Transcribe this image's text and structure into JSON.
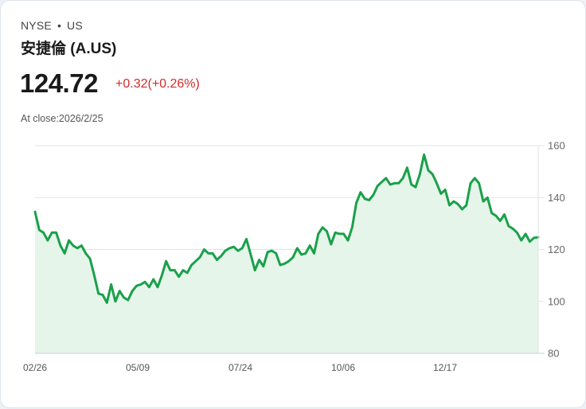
{
  "header": {
    "exchange": "NYSE",
    "separator": "•",
    "region": "US",
    "title": "安捷倫 (A.US)",
    "price": "124.72",
    "change": "+0.32(+0.26%)",
    "close_label": "At close:2026/2/25"
  },
  "colors": {
    "line": "#1aa04a",
    "fill": "#e5f5ea",
    "change_negative_or_up": "#d42a2a",
    "grid": "#e3e3e3"
  },
  "chart_data": {
    "type": "line",
    "title": "安捷倫 (A.US)",
    "xlabel": "",
    "ylabel": "",
    "ylim": [
      80,
      160
    ],
    "yticks": [
      80,
      100,
      120,
      140,
      160
    ],
    "xticks": [
      "02/26",
      "05/09",
      "07/24",
      "10/06",
      "12/17"
    ],
    "grid": "horizontal",
    "y_axis_position": "right",
    "series": [
      {
        "name": "A.US close",
        "approx_values": [
          134.5,
          127.5,
          126.5,
          123.5,
          126.5,
          126.5,
          121.5,
          118.5,
          123.5,
          121.5,
          120.5,
          121.5,
          118.5,
          116.5,
          110,
          103,
          102.5,
          99.5,
          106.5,
          100,
          104,
          101.5,
          100.5,
          104,
          106,
          106.5,
          107.5,
          105.5,
          108.5,
          105.5,
          110,
          115.5,
          112,
          112,
          109.5,
          112,
          111,
          114,
          115.5,
          117,
          120,
          118.5,
          118.5,
          116,
          117.5,
          119.5,
          120.5,
          121,
          119.5,
          120.5,
          124,
          118,
          112,
          116,
          113.5,
          119,
          119.5,
          118.5,
          114,
          114.5,
          115.5,
          117,
          120.5,
          118,
          118.5,
          121.5,
          118.5,
          126,
          128.5,
          127,
          122,
          126.5,
          126,
          126,
          123.5,
          128.5,
          138,
          142,
          139.5,
          139,
          141,
          144.5,
          146,
          147.5,
          145,
          145.5,
          145.5,
          147.5,
          151.5,
          145,
          144,
          149,
          156.5,
          150.5,
          149,
          145.5,
          141.5,
          143,
          137,
          138.5,
          137.5,
          135.5,
          137,
          145.5,
          147.5,
          145.5,
          138.5,
          140,
          134,
          133,
          131,
          133.5,
          129,
          128,
          126.5,
          123.5,
          126,
          123,
          124.5,
          124.72
        ],
        "start_value": 134.5,
        "end_value": 124.72,
        "max_approx": 156.5,
        "min_approx": 99.5
      }
    ]
  }
}
